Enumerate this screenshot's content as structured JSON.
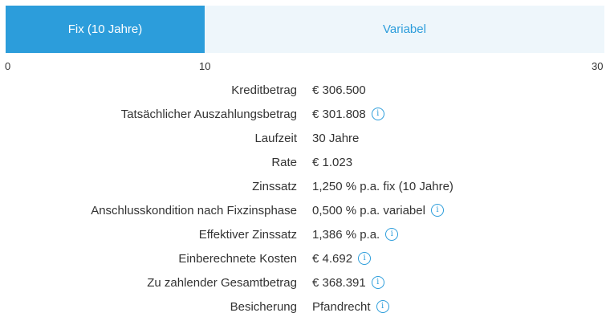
{
  "timeline": {
    "fix_label": "Fix (10 Jahre)",
    "variable_label": "Variabel",
    "ticks": [
      "0",
      "10",
      "30"
    ],
    "colors": {
      "fix": "#2c9ddb",
      "variable_bg": "#eef6fb"
    }
  },
  "details": [
    {
      "label": "Kreditbetrag",
      "value": "€ 306.500",
      "info": false
    },
    {
      "label": "Tatsächlicher Auszahlungsbetrag",
      "value": "€ 301.808",
      "info": true
    },
    {
      "label": "Laufzeit",
      "value": "30 Jahre",
      "info": false
    },
    {
      "label": "Rate",
      "value": "€ 1.023",
      "info": false
    },
    {
      "label": "Zinssatz",
      "value": "1,250 % p.a. fix (10 Jahre)",
      "info": false
    },
    {
      "label": "Anschlusskondition nach Fixzinsphase",
      "value": "0,500 % p.a. variabel",
      "info": true
    },
    {
      "label": "Effektiver Zinssatz",
      "value": "1,386 % p.a.",
      "info": true
    },
    {
      "label": "Einberechnete Kosten",
      "value": "€ 4.692",
      "info": true
    },
    {
      "label": "Zu zahlender Gesamtbetrag",
      "value": "€ 368.391",
      "info": true
    },
    {
      "label": "Besicherung",
      "value": "Pfandrecht",
      "info": true
    }
  ],
  "icons": {
    "info": "info-circle-icon"
  }
}
